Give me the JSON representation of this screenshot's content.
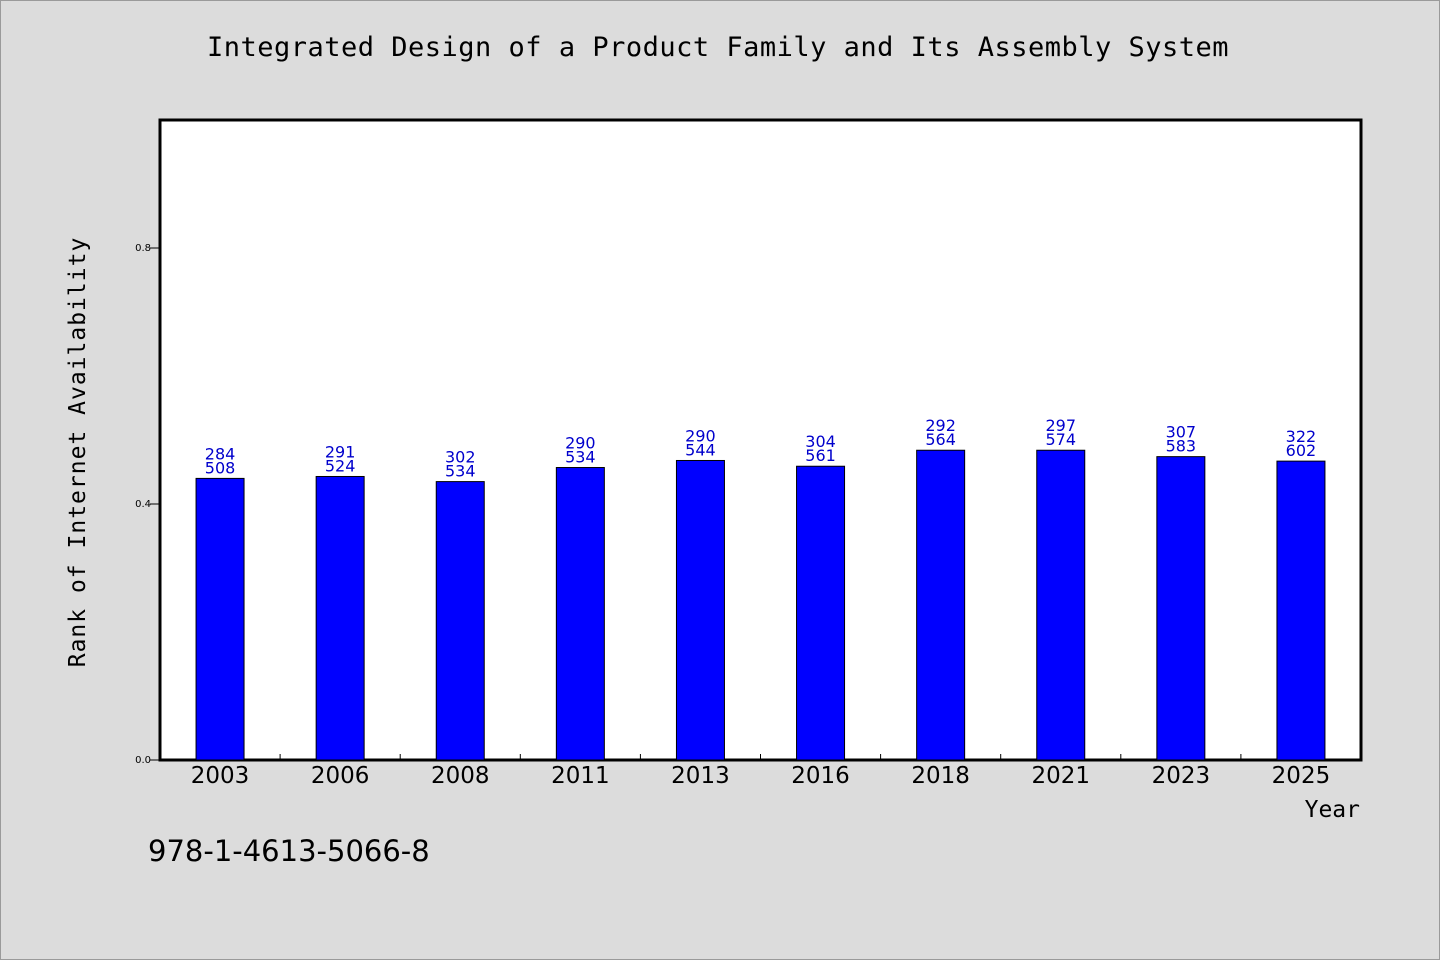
{
  "chart_data": {
    "type": "bar",
    "title": "Integrated Design of a Product Family and Its Assembly System",
    "xlabel": "Year",
    "ylabel": "Rank of Internet Availability",
    "ylim": [
      0,
      1.0
    ],
    "yticks": [
      "0.0",
      "0.4",
      "0.8"
    ],
    "categories": [
      "2003",
      "2006",
      "2008",
      "2011",
      "2013",
      "2016",
      "2018",
      "2021",
      "2023",
      "2025"
    ],
    "values": [
      0.44,
      0.443,
      0.435,
      0.457,
      0.468,
      0.459,
      0.484,
      0.484,
      0.474,
      0.467
    ],
    "label_top": [
      "284",
      "291",
      "302",
      "290",
      "290",
      "304",
      "292",
      "297",
      "307",
      "322"
    ],
    "label_bottom": [
      "508",
      "524",
      "534",
      "534",
      "544",
      "561",
      "564",
      "574",
      "583",
      "602"
    ],
    "grid": false,
    "bar_color": "#0000ff",
    "label_color": "#0000cc"
  },
  "footer": {
    "code": "978-1-4613-5066-8"
  }
}
